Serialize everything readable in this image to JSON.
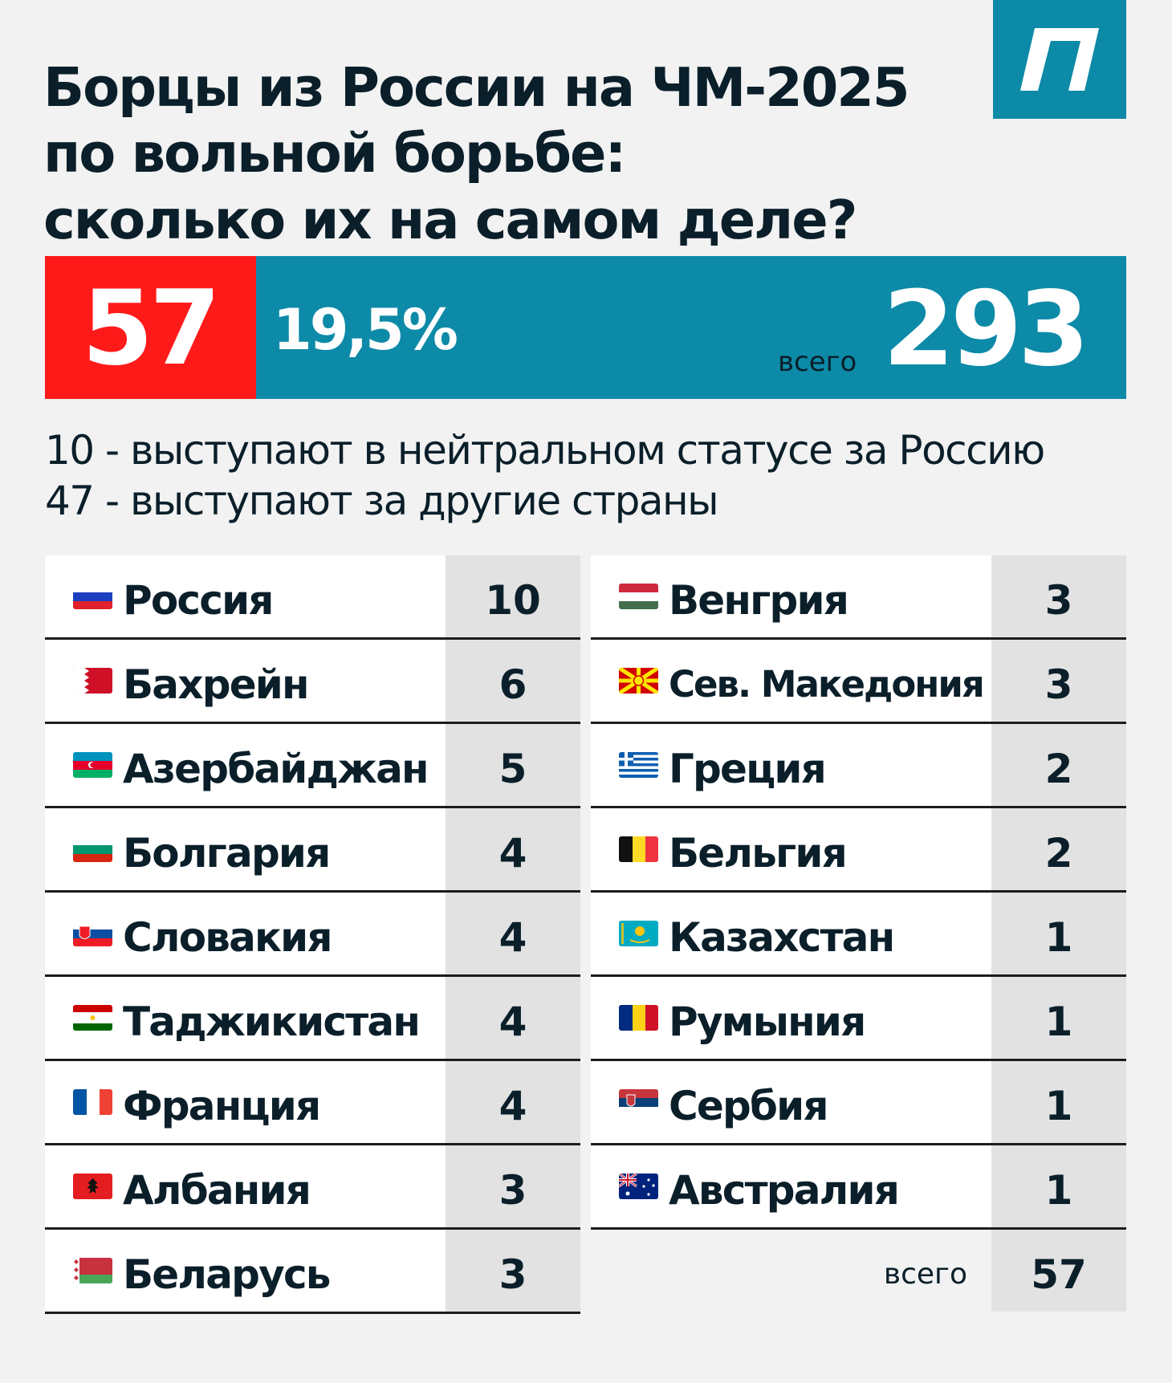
{
  "title_lines": [
    "Борцы из России на ЧМ-2025",
    "по вольной борьбе:",
    "сколько их на самом деле?"
  ],
  "summary": {
    "russian_wrestlers": "57",
    "percentage": "19,5%",
    "total_label": "всего",
    "total": "293"
  },
  "notes": [
    "10 - выступают в нейтральном статусе за Россию",
    "47 - выступают за другие страны"
  ],
  "chart_data": {
    "type": "table",
    "columns": [
      "country",
      "count"
    ],
    "rows_left": [
      {
        "country": "Россия",
        "count": "10",
        "flag": "russia-flag-icon"
      },
      {
        "country": "Бахрейн",
        "count": "6",
        "flag": "bahrain-flag-icon"
      },
      {
        "country": "Азербайджан",
        "count": "5",
        "flag": "azerbaijan-flag-icon"
      },
      {
        "country": "Болгария",
        "count": "4",
        "flag": "bulgaria-flag-icon"
      },
      {
        "country": "Словакия",
        "count": "4",
        "flag": "slovakia-flag-icon"
      },
      {
        "country": "Таджикистан",
        "count": "4",
        "flag": "tajikistan-flag-icon"
      },
      {
        "country": "Франция",
        "count": "4",
        "flag": "france-flag-icon"
      },
      {
        "country": "Албания",
        "count": "3",
        "flag": "albania-flag-icon"
      },
      {
        "country": "Беларусь",
        "count": "3",
        "flag": "belarus-flag-icon"
      }
    ],
    "rows_right": [
      {
        "country": "Венгрия",
        "count": "3",
        "flag": "hungary-flag-icon"
      },
      {
        "country": "Сев. Македония",
        "count": "3",
        "flag": "north-macedonia-flag-icon"
      },
      {
        "country": "Греция",
        "count": "2",
        "flag": "greece-flag-icon"
      },
      {
        "country": "Бельгия",
        "count": "2",
        "flag": "belgium-flag-icon"
      },
      {
        "country": "Казахстан",
        "count": "1",
        "flag": "kazakhstan-flag-icon"
      },
      {
        "country": "Румыния",
        "count": "1",
        "flag": "romania-flag-icon"
      },
      {
        "country": "Сербия",
        "count": "1",
        "flag": "serbia-flag-icon"
      },
      {
        "country": "Австралия",
        "count": "1",
        "flag": "australia-flag-icon"
      }
    ],
    "total_label": "всего",
    "total": "57"
  },
  "colors": {
    "accent_teal": "#0d8aa7",
    "accent_red": "#ff1a1a",
    "text_dark": "#0b1f2a",
    "background": "#f2f2f2"
  },
  "logo_icon": "publisher-logo-icon"
}
